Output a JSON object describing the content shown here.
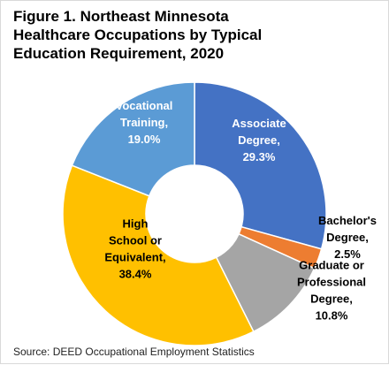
{
  "chart_data": {
    "type": "pie",
    "title": "Figure 1. Northeast Minnesota Healthcare Occupations by Typical Education Requirement, 2020",
    "slices": [
      {
        "label_lines": [
          "Associate",
          "Degree,",
          "29.3%"
        ],
        "value": 29.3,
        "color": "#4472c4"
      },
      {
        "label_lines": [
          "Bachelor's",
          "Degree,",
          "2.5%"
        ],
        "value": 2.5,
        "color": "#ed7d31"
      },
      {
        "label_lines": [
          "Graduate or",
          "Professional",
          "Degree,",
          "10.8%"
        ],
        "value": 10.8,
        "color": "#a5a5a5"
      },
      {
        "label_lines": [
          "High",
          "School or",
          "Equivalent,",
          "38.4%"
        ],
        "value": 38.4,
        "color": "#ffc000"
      },
      {
        "label_lines": [
          "Vocational",
          "Training,",
          "19.0%"
        ],
        "value": 19.0,
        "color": "#5b9bd5"
      }
    ],
    "donut": true,
    "legend": "none"
  },
  "source": "Source: DEED Occupational Employment Statistics"
}
